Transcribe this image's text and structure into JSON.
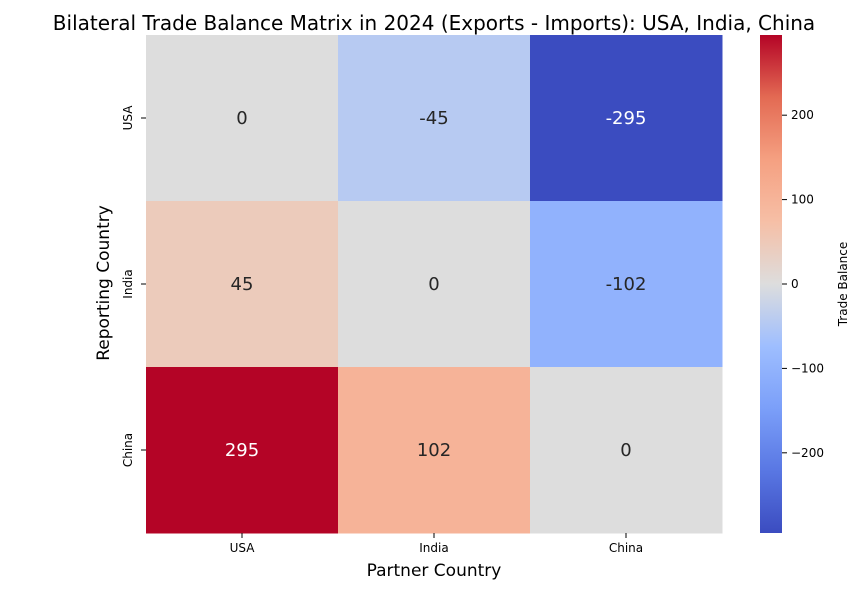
{
  "chart_data": {
    "type": "heatmap",
    "title": "Bilateral Trade Balance Matrix in 2024 (Exports - Imports): USA, India, China",
    "xlabel": "Partner Country",
    "ylabel": "Reporting Country",
    "x_categories": [
      "USA",
      "India",
      "China"
    ],
    "y_categories": [
      "USA",
      "India",
      "China"
    ],
    "values": [
      [
        0,
        -45,
        -295
      ],
      [
        45,
        0,
        -102
      ],
      [
        295,
        102,
        0
      ]
    ],
    "colormap": "coolwarm",
    "value_range": [
      -295,
      295
    ],
    "colorbar": {
      "label": "Trade Balance",
      "ticks": [
        200,
        100,
        0,
        -100,
        -200
      ],
      "tick_labels": [
        "200",
        "100",
        "0",
        "−100",
        "−200"
      ]
    },
    "grid": false
  }
}
